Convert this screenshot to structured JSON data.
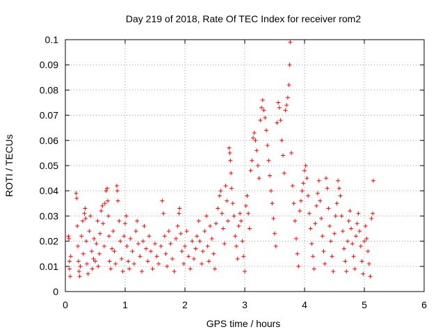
{
  "chart_data": {
    "type": "scatter",
    "title": "Day 219 of 2018, Rate Of TEC Index for receiver rom2",
    "xlabel": "GPS time / hours",
    "ylabel": "ROTI / TECUs",
    "xlim": [
      0,
      6
    ],
    "ylim": [
      0,
      0.1
    ],
    "xticks": [
      0,
      1,
      2,
      3,
      4,
      5,
      6
    ],
    "yticks": [
      0,
      0.01,
      0.02,
      0.03,
      0.04,
      0.05,
      0.06,
      0.07,
      0.08,
      0.09,
      0.1
    ],
    "xtick_labels": [
      "0",
      "1",
      "2",
      "3",
      "4",
      "5",
      "6"
    ],
    "ytick_labels": [
      "0",
      "0.01",
      "0.02",
      "0.03",
      "0.04",
      "0.05",
      "0.06",
      "0.07",
      "0.08",
      "0.09",
      "0.1"
    ],
    "grid": true,
    "legend": "none",
    "marker": "+",
    "color": "#ff0000",
    "series": [
      {
        "name": "rom2",
        "points": [
          [
            0.05,
            0.022
          ],
          [
            0.06,
            0.021
          ],
          [
            0.07,
            0.012
          ],
          [
            0.07,
            0.009
          ],
          [
            0.08,
            0.006
          ],
          [
            0.09,
            0.014
          ],
          [
            0.18,
            0.039
          ],
          [
            0.19,
            0.037
          ],
          [
            0.2,
            0.026
          ],
          [
            0.21,
            0.018
          ],
          [
            0.22,
            0.012
          ],
          [
            0.23,
            0.008
          ],
          [
            0.24,
            0.006
          ],
          [
            0.25,
            0.01
          ],
          [
            0.27,
            0.022
          ],
          [
            0.29,
            0.028
          ],
          [
            0.3,
            0.015
          ],
          [
            0.32,
            0.031
          ],
          [
            0.33,
            0.033
          ],
          [
            0.34,
            0.029
          ],
          [
            0.35,
            0.02
          ],
          [
            0.36,
            0.011
          ],
          [
            0.38,
            0.007
          ],
          [
            0.4,
            0.024
          ],
          [
            0.42,
            0.03
          ],
          [
            0.44,
            0.016
          ],
          [
            0.45,
            0.009
          ],
          [
            0.47,
            0.013
          ],
          [
            0.48,
            0.021
          ],
          [
            0.5,
            0.012
          ],
          [
            0.52,
            0.019
          ],
          [
            0.54,
            0.028
          ],
          [
            0.55,
            0.01
          ],
          [
            0.57,
            0.015
          ],
          [
            0.58,
            0.023
          ],
          [
            0.6,
            0.032
          ],
          [
            0.62,
            0.034
          ],
          [
            0.63,
            0.027
          ],
          [
            0.65,
            0.018
          ],
          [
            0.66,
            0.035
          ],
          [
            0.68,
            0.04
          ],
          [
            0.7,
            0.041
          ],
          [
            0.71,
            0.036
          ],
          [
            0.72,
            0.03
          ],
          [
            0.73,
            0.022
          ],
          [
            0.74,
            0.012
          ],
          [
            0.76,
            0.009
          ],
          [
            0.78,
            0.017
          ],
          [
            0.8,
            0.024
          ],
          [
            0.82,
            0.016
          ],
          [
            0.84,
            0.011
          ],
          [
            0.86,
            0.042
          ],
          [
            0.87,
            0.04
          ],
          [
            0.88,
            0.036
          ],
          [
            0.9,
            0.028
          ],
          [
            0.92,
            0.02
          ],
          [
            0.94,
            0.013
          ],
          [
            0.96,
            0.008
          ],
          [
            0.98,
            0.022
          ],
          [
            1.0,
            0.027
          ],
          [
            1.02,
            0.03
          ],
          [
            1.03,
            0.018
          ],
          [
            1.05,
            0.012
          ],
          [
            1.07,
            0.009
          ],
          [
            1.09,
            0.021
          ],
          [
            1.12,
            0.016
          ],
          [
            1.15,
            0.011
          ],
          [
            1.18,
            0.024
          ],
          [
            1.2,
            0.028
          ],
          [
            1.22,
            0.019
          ],
          [
            1.25,
            0.014
          ],
          [
            1.28,
            0.008
          ],
          [
            1.3,
            0.02
          ],
          [
            1.32,
            0.026
          ],
          [
            1.35,
            0.017
          ],
          [
            1.38,
            0.012
          ],
          [
            1.4,
            0.022
          ],
          [
            1.43,
            0.016
          ],
          [
            1.46,
            0.009
          ],
          [
            1.5,
            0.019
          ],
          [
            1.53,
            0.014
          ],
          [
            1.56,
            0.011
          ],
          [
            1.6,
            0.018
          ],
          [
            1.62,
            0.036
          ],
          [
            1.64,
            0.031
          ],
          [
            1.66,
            0.022
          ],
          [
            1.68,
            0.015
          ],
          [
            1.7,
            0.01
          ],
          [
            1.73,
            0.024
          ],
          [
            1.76,
            0.019
          ],
          [
            1.79,
            0.013
          ],
          [
            1.82,
            0.008
          ],
          [
            1.85,
            0.021
          ],
          [
            1.88,
            0.026
          ],
          [
            1.9,
            0.031
          ],
          [
            1.91,
            0.033
          ],
          [
            1.93,
            0.023
          ],
          [
            1.95,
            0.016
          ],
          [
            1.98,
            0.011
          ],
          [
            2.0,
            0.018
          ],
          [
            2.03,
            0.024
          ],
          [
            2.06,
            0.014
          ],
          [
            2.09,
            0.009
          ],
          [
            2.12,
            0.02
          ],
          [
            2.15,
            0.013
          ],
          [
            2.18,
            0.017
          ],
          [
            2.2,
            0.022
          ],
          [
            2.23,
            0.028
          ],
          [
            2.25,
            0.02
          ],
          [
            2.28,
            0.011
          ],
          [
            2.3,
            0.016
          ],
          [
            2.33,
            0.024
          ],
          [
            2.36,
            0.03
          ],
          [
            2.38,
            0.018
          ],
          [
            2.4,
            0.012
          ],
          [
            2.42,
            0.026
          ],
          [
            2.45,
            0.021
          ],
          [
            2.48,
            0.015
          ],
          [
            2.5,
            0.009
          ],
          [
            2.52,
            0.027
          ],
          [
            2.55,
            0.033
          ],
          [
            2.58,
            0.038
          ],
          [
            2.6,
            0.04
          ],
          [
            2.62,
            0.031
          ],
          [
            2.64,
            0.025
          ],
          [
            2.66,
            0.019
          ],
          [
            2.68,
            0.042
          ],
          [
            2.7,
            0.036
          ],
          [
            2.72,
            0.028
          ],
          [
            2.74,
            0.057
          ],
          [
            2.75,
            0.055
          ],
          [
            2.76,
            0.052
          ],
          [
            2.77,
            0.047
          ],
          [
            2.78,
            0.041
          ],
          [
            2.8,
            0.035
          ],
          [
            2.82,
            0.03
          ],
          [
            2.84,
            0.022
          ],
          [
            2.86,
            0.018
          ],
          [
            2.88,
            0.013
          ],
          [
            2.9,
            0.026
          ],
          [
            2.92,
            0.031
          ],
          [
            2.94,
            0.028
          ],
          [
            2.96,
            0.02
          ],
          [
            2.98,
            0.014
          ],
          [
            3.0,
            0.008
          ],
          [
            3.02,
            0.034
          ],
          [
            3.04,
            0.038
          ],
          [
            3.06,
            0.031
          ],
          [
            3.08,
            0.025
          ],
          [
            3.1,
            0.048
          ],
          [
            3.12,
            0.052
          ],
          [
            3.14,
            0.061
          ],
          [
            3.16,
            0.063
          ],
          [
            3.18,
            0.06
          ],
          [
            3.2,
            0.056
          ],
          [
            3.22,
            0.05
          ],
          [
            3.24,
            0.045
          ],
          [
            3.26,
            0.068
          ],
          [
            3.28,
            0.073
          ],
          [
            3.3,
            0.076
          ],
          [
            3.32,
            0.072
          ],
          [
            3.34,
            0.069
          ],
          [
            3.36,
            0.064
          ],
          [
            3.38,
            0.058
          ],
          [
            3.4,
            0.052
          ],
          [
            3.42,
            0.046
          ],
          [
            3.44,
            0.04
          ],
          [
            3.46,
            0.035
          ],
          [
            3.48,
            0.029
          ],
          [
            3.5,
            0.023
          ],
          [
            3.52,
            0.018
          ],
          [
            3.54,
            0.067
          ],
          [
            3.56,
            0.075
          ],
          [
            3.58,
            0.073
          ],
          [
            3.6,
            0.068
          ],
          [
            3.62,
            0.06
          ],
          [
            3.64,
            0.054
          ],
          [
            3.66,
            0.047
          ],
          [
            3.68,
            0.072
          ],
          [
            3.7,
            0.074
          ],
          [
            3.72,
            0.077
          ],
          [
            3.74,
            0.082
          ],
          [
            3.75,
            0.09
          ],
          [
            3.76,
            0.099
          ],
          [
            3.78,
            0.055
          ],
          [
            3.8,
            0.042
          ],
          [
            3.82,
            0.035
          ],
          [
            3.84,
            0.028
          ],
          [
            3.86,
            0.021
          ],
          [
            3.88,
            0.015
          ],
          [
            3.9,
            0.01
          ],
          [
            3.92,
            0.032
          ],
          [
            3.94,
            0.036
          ],
          [
            3.96,
            0.04
          ],
          [
            3.98,
            0.043
          ],
          [
            4.0,
            0.048
          ],
          [
            4.02,
            0.05
          ],
          [
            4.04,
            0.045
          ],
          [
            4.06,
            0.038
          ],
          [
            4.08,
            0.031
          ],
          [
            4.1,
            0.025
          ],
          [
            4.12,
            0.019
          ],
          [
            4.14,
            0.014
          ],
          [
            4.16,
            0.009
          ],
          [
            4.18,
            0.027
          ],
          [
            4.2,
            0.034
          ],
          [
            4.22,
            0.039
          ],
          [
            4.24,
            0.044
          ],
          [
            4.26,
            0.036
          ],
          [
            4.28,
            0.029
          ],
          [
            4.3,
            0.022
          ],
          [
            4.32,
            0.016
          ],
          [
            4.34,
            0.011
          ],
          [
            4.36,
            0.045
          ],
          [
            4.38,
            0.041
          ],
          [
            4.4,
            0.033
          ],
          [
            4.42,
            0.026
          ],
          [
            4.44,
            0.02
          ],
          [
            4.46,
            0.014
          ],
          [
            4.48,
            0.008
          ],
          [
            4.5,
            0.023
          ],
          [
            4.52,
            0.03
          ],
          [
            4.54,
            0.035
          ],
          [
            4.56,
            0.044
          ],
          [
            4.58,
            0.041
          ],
          [
            4.6,
            0.038
          ],
          [
            4.62,
            0.03
          ],
          [
            4.64,
            0.024
          ],
          [
            4.66,
            0.017
          ],
          [
            4.68,
            0.012
          ],
          [
            4.7,
            0.008
          ],
          [
            4.72,
            0.02
          ],
          [
            4.74,
            0.028
          ],
          [
            4.76,
            0.032
          ],
          [
            4.78,
            0.025
          ],
          [
            4.8,
            0.019
          ],
          [
            4.82,
            0.014
          ],
          [
            4.84,
            0.009
          ],
          [
            4.86,
            0.022
          ],
          [
            4.88,
            0.027
          ],
          [
            4.9,
            0.031
          ],
          [
            4.92,
            0.024
          ],
          [
            4.94,
            0.018
          ],
          [
            4.96,
            0.012
          ],
          [
            4.98,
            0.007
          ],
          [
            5.0,
            0.02
          ],
          [
            5.02,
            0.026
          ],
          [
            5.04,
            0.021
          ],
          [
            5.06,
            0.016
          ],
          [
            5.08,
            0.011
          ],
          [
            5.1,
            0.006
          ],
          [
            5.12,
            0.029
          ],
          [
            5.14,
            0.031
          ],
          [
            5.15,
            0.044
          ]
        ]
      }
    ]
  }
}
